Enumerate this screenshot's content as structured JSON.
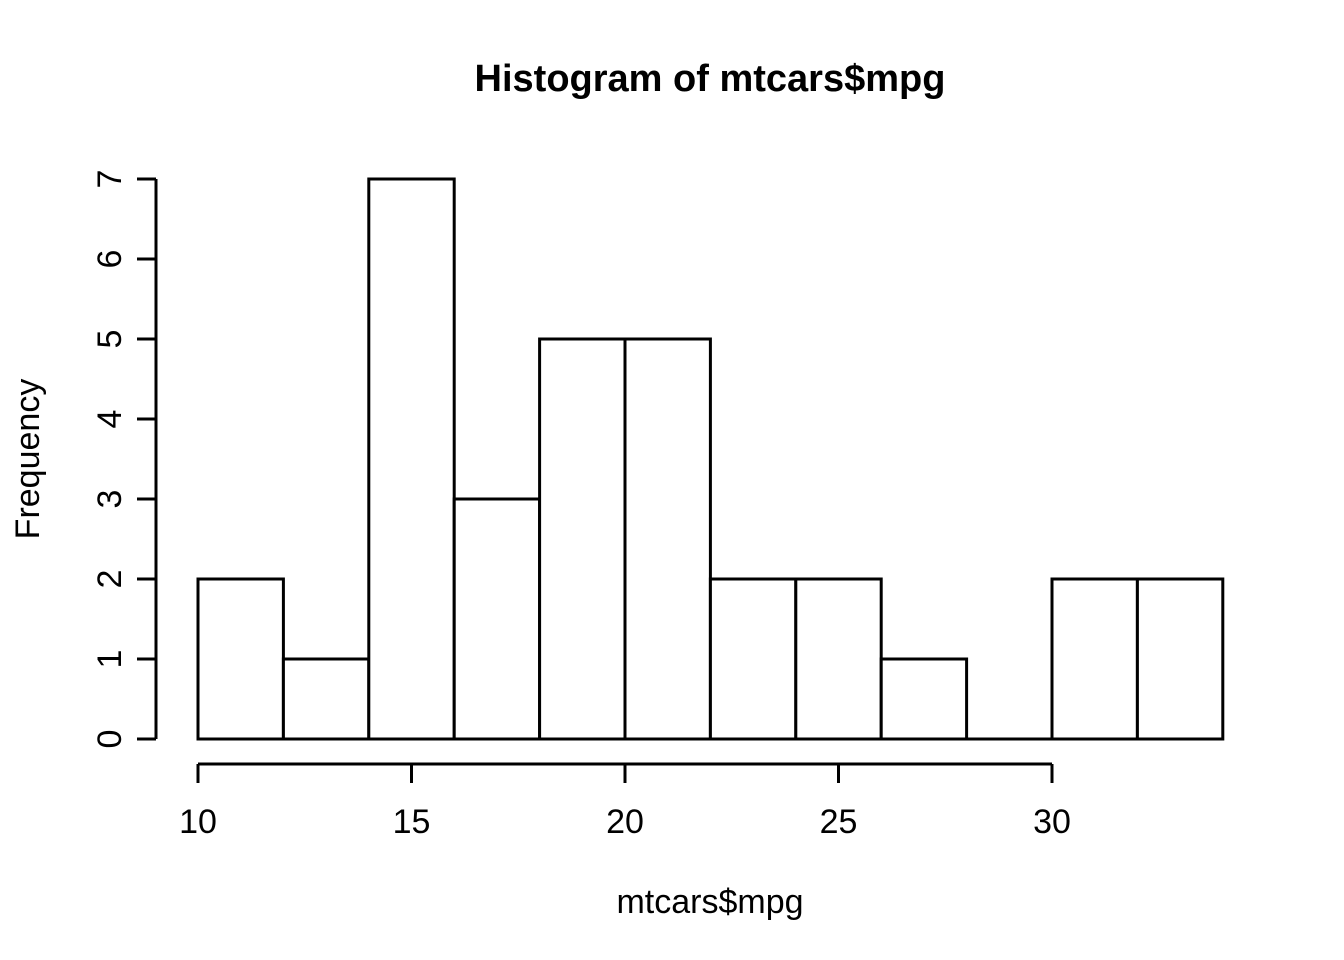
{
  "chart_data": {
    "type": "bar",
    "chart_style": "r-base-histogram",
    "title": "Histogram of mtcars$mpg",
    "xlabel": "mtcars$mpg",
    "ylabel": "Frequency",
    "bin_edges": [
      10,
      12,
      14,
      16,
      18,
      20,
      22,
      24,
      26,
      28,
      30,
      32,
      34
    ],
    "counts": [
      2,
      1,
      7,
      3,
      5,
      5,
      2,
      2,
      1,
      0,
      2,
      2
    ],
    "x_ticks": [
      10,
      15,
      20,
      25,
      30
    ],
    "y_ticks": [
      0,
      1,
      2,
      3,
      4,
      5,
      6,
      7
    ],
    "xlim": [
      10,
      34
    ],
    "ylim": [
      0,
      7
    ],
    "grid": false,
    "legend": "none",
    "colors": {
      "background": "#ffffff",
      "bar_fill": "#ffffff",
      "line": "#000000",
      "text": "#000000"
    }
  }
}
